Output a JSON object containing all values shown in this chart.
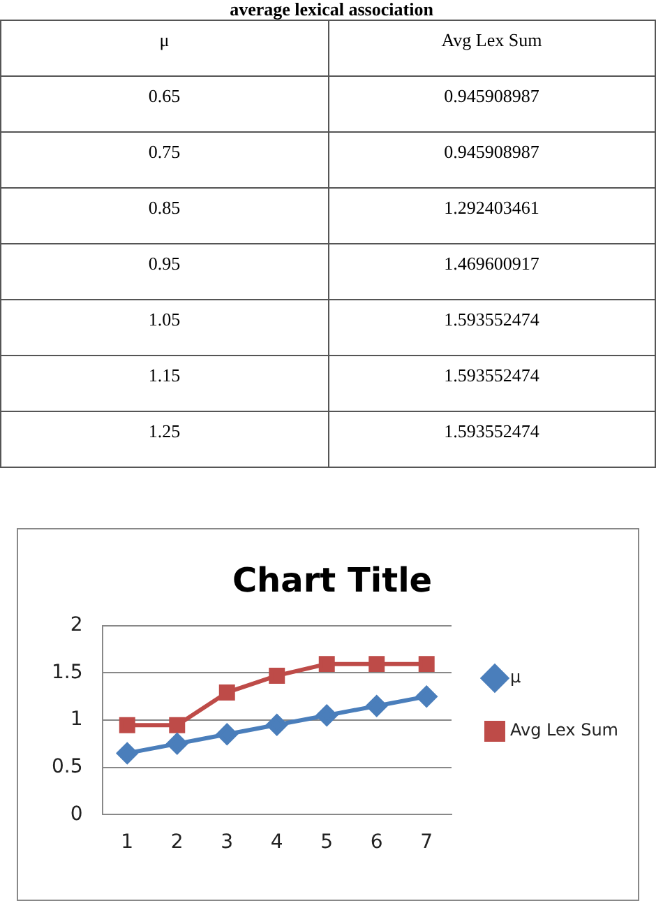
{
  "chart_data": {
    "type": "line",
    "title": "Chart Title",
    "annotations": [
      "average lexical association",
      "μ",
      "Avg Lex Sum",
      "0.65",
      "0.945908987",
      "0.75",
      "0.945908987",
      "0.85",
      "1.292403461",
      "0.95",
      "1.469600917",
      "1.05",
      "1.593552474",
      "1.15",
      "1.593552474",
      "1.25",
      "1.593552474"
    ],
    "categories": [
      "1",
      "2",
      "3",
      "4",
      "5",
      "6",
      "7"
    ],
    "series": [
      {
        "name": "μ",
        "color": "#4a7ebb",
        "marker": "diamond",
        "values": [
          0.65,
          0.75,
          0.85,
          0.95,
          1.05,
          1.15,
          1.25
        ]
      },
      {
        "name": "Avg Lex Sum",
        "color": "#be4b48",
        "marker": "square",
        "values": [
          0.945908987,
          0.945908987,
          1.292403461,
          1.469600917,
          1.593552474,
          1.593552474,
          1.593552474
        ]
      }
    ],
    "ylim": [
      0,
      2
    ],
    "yticks": [
      0,
      0.5,
      1,
      1.5,
      2
    ],
    "grid": "y",
    "legend": "right"
  }
}
